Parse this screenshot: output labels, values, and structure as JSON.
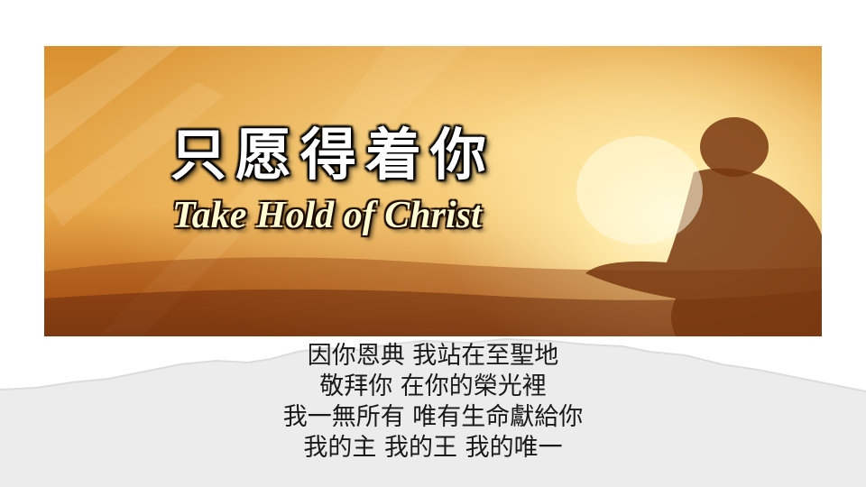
{
  "banner": {
    "title_chinese": "只愿得着你",
    "title_english": "Take Hold of Christ"
  },
  "lyrics": [
    "因你恩典 我站在至聖地",
    "敬拜你 在你的榮光裡",
    "我一無所有 唯有生命獻給你",
    "我的主 我的王 我的唯一"
  ],
  "colors": {
    "background": "#ffffff",
    "paper": "#ececec",
    "banner_orange": "#e3a446",
    "lyric_text": "#1a1a1a"
  }
}
